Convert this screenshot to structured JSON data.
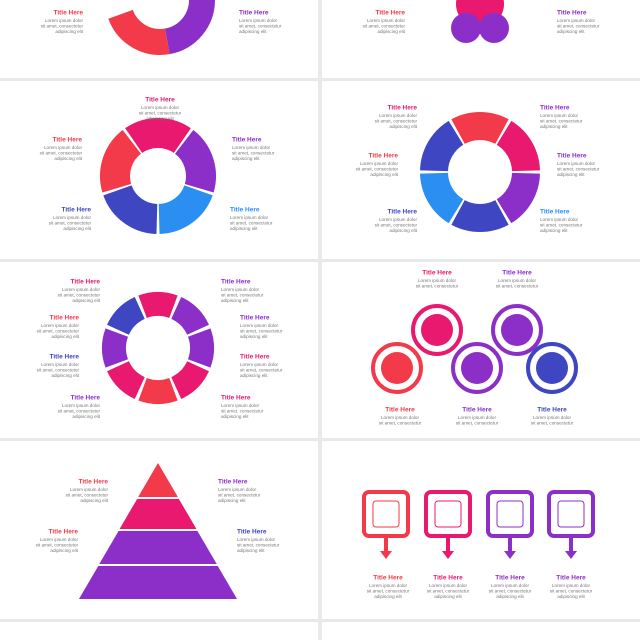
{
  "slides": [
    {
      "items": [
        {
          "title": "Title Here",
          "lines": [
            "Lorem ipsum dolor",
            "sit amet, consectetur",
            "adipiscing elit"
          ]
        },
        {
          "title": "Title Here",
          "lines": [
            "Lorem ipsum dolor",
            "sit amet, consectetur",
            "adipiscing elit"
          ]
        }
      ]
    },
    {
      "items": [
        {
          "title": "Title Here",
          "lines": [
            "Lorem ipsum dolor",
            "sit amet, consectetur",
            "adipiscing elit"
          ]
        },
        {
          "title": "Title Here",
          "lines": [
            "Lorem ipsum dolor",
            "sit amet, consectetur",
            "adipiscing elit"
          ]
        }
      ]
    },
    {
      "items": [
        {
          "title": "Title Here",
          "lines": [
            "Lorem ipsum dolor",
            "sit amet, consectetur",
            "adipiscing elit"
          ]
        },
        {
          "title": "Title Here",
          "lines": [
            "Lorem ipsum dolor",
            "sit amet, consectetur",
            "adipiscing elit"
          ]
        },
        {
          "title": "Title Here",
          "lines": [
            "Lorem ipsum dolor",
            "sit amet, consectetur",
            "adipiscing elit"
          ]
        },
        {
          "title": "Title Here",
          "lines": [
            "Lorem ipsum dolor",
            "sit amet, consectetur",
            "adipiscing elit"
          ]
        },
        {
          "title": "Title Here",
          "lines": [
            "Lorem ipsum dolor",
            "sit amet, consectetur",
            "adipiscing elit"
          ]
        }
      ]
    },
    {
      "items": [
        {
          "title": "Title Here",
          "lines": [
            "Lorem ipsum dolor",
            "sit amet, consectetur",
            "adipiscing elit"
          ]
        },
        {
          "title": "Title Here",
          "lines": [
            "Lorem ipsum dolor",
            "sit amet, consectetur",
            "adipiscing elit"
          ]
        },
        {
          "title": "Title Here",
          "lines": [
            "Lorem ipsum dolor",
            "sit amet, consectetur",
            "adipiscing elit"
          ]
        },
        {
          "title": "Title Here",
          "lines": [
            "Lorem ipsum dolor",
            "sit amet, consectetur",
            "adipiscing elit"
          ]
        },
        {
          "title": "Title Here",
          "lines": [
            "Lorem ipsum dolor",
            "sit amet, consectetur",
            "adipiscing elit"
          ]
        },
        {
          "title": "Title Here",
          "lines": [
            "Lorem ipsum dolor",
            "sit amet, consectetur",
            "adipiscing elit"
          ]
        }
      ]
    },
    {
      "items": [
        {
          "title": "Title Here",
          "lines": [
            "Lorem ipsum dolor",
            "sit amet, consectetur",
            "adipiscing elit"
          ]
        },
        {
          "title": "Title Here",
          "lines": [
            "Lorem ipsum dolor",
            "sit amet, consectetur",
            "adipiscing elit"
          ]
        },
        {
          "title": "Title Here",
          "lines": [
            "Lorem ipsum dolor",
            "sit amet, consectetur",
            "adipiscing elit"
          ]
        },
        {
          "title": "Title Here",
          "lines": [
            "Lorem ipsum dolor",
            "sit amet, consectetur",
            "adipiscing elit"
          ]
        },
        {
          "title": "Title Here",
          "lines": [
            "Lorem ipsum dolor",
            "sit amet, consectetur",
            "adipiscing elit"
          ]
        },
        {
          "title": "Title Here",
          "lines": [
            "Lorem ipsum dolor",
            "sit amet, consectetur",
            "adipiscing elit"
          ]
        },
        {
          "title": "Title Here",
          "lines": [
            "Lorem ipsum dolor",
            "sit amet, consectetur",
            "adipiscing elit"
          ]
        },
        {
          "title": "Title Here",
          "lines": [
            "Lorem ipsum dolor",
            "sit amet, consectetur",
            "adipiscing elit"
          ]
        }
      ]
    },
    {
      "items": [
        {
          "title": "Title Here",
          "lines": [
            "Lorem ipsum dolor",
            "sit amet, consectetur"
          ]
        },
        {
          "title": "Title Here",
          "lines": [
            "Lorem ipsum dolor",
            "sit amet, consectetur"
          ]
        },
        {
          "title": "Title Here",
          "lines": [
            "Lorem ipsum dolor",
            "sit amet, consectetur"
          ]
        },
        {
          "title": "Title Here",
          "lines": [
            "Lorem ipsum dolor",
            "sit amet, consectetur"
          ]
        },
        {
          "title": "Title Here",
          "lines": [
            "Lorem ipsum dolor",
            "sit amet, consectetur"
          ]
        }
      ]
    },
    {
      "items": [
        {
          "title": "Title Here",
          "lines": [
            "Lorem ipsum dolor",
            "sit amet, consectetur",
            "adipiscing elit"
          ]
        },
        {
          "title": "Title Here",
          "lines": [
            "Lorem ipsum dolor",
            "sit amet, consectetur",
            "adipiscing elit"
          ]
        },
        {
          "title": "Title Here",
          "lines": [
            "Lorem ipsum dolor",
            "sit amet, consectetur",
            "adipiscing elit"
          ]
        },
        {
          "title": "Title Here",
          "lines": [
            "Lorem ipsum dolor",
            "sit amet, consectetur",
            "adipiscing elit"
          ]
        }
      ]
    },
    {
      "items": [
        {
          "title": "Title Here",
          "lines": [
            "Lorem ipsum dolor",
            "sit amet, consectetur",
            "adipiscing elit"
          ]
        },
        {
          "title": "Title Here",
          "lines": [
            "Lorem ipsum dolor",
            "sit amet, consectetur",
            "adipiscing elit"
          ]
        },
        {
          "title": "Title Here",
          "lines": [
            "Lorem ipsum dolor",
            "sit amet, consectetur",
            "adipiscing elit"
          ]
        },
        {
          "title": "Title Here",
          "lines": [
            "Lorem ipsum dolor",
            "sit amet, consectetur",
            "adipiscing elit"
          ]
        }
      ]
    }
  ]
}
